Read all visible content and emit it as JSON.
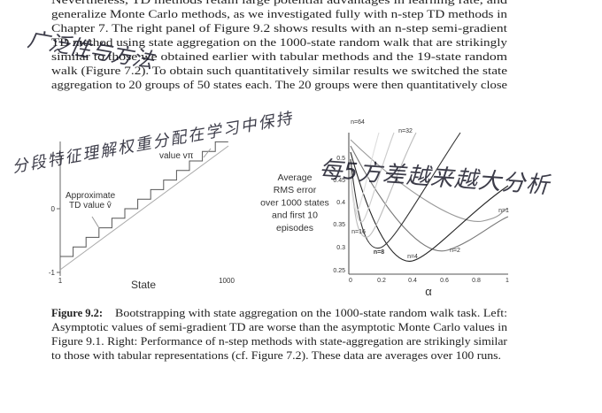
{
  "body": {
    "lines": [
      "Nevertheless, TD methods retain large potential advantages in learning rate, and",
      "generalize Monte Carlo methods, as we investigated fully with n-step TD methods in",
      "Chapter 7. The right panel of Figure 9.2 shows results with an n-step semi-gradient",
      "TD method using state aggregation on the 1000-state random walk that are strikingly",
      "similar to those we obtained earlier with tabular methods and the 19-state random",
      "walk (Figure 7.2). To obtain such quantitatively similar results we switched the state",
      "aggregation to 20 groups of 50 states each. The 20 groups were then quantitatively close"
    ]
  },
  "figure": {
    "left": {
      "true_value_label": "value vπ",
      "approx_label": [
        "Approximate",
        "TD value v̂"
      ],
      "yticks": [
        "0",
        "-1"
      ],
      "xticks": [
        "1",
        "1000"
      ],
      "xlabel": "State"
    },
    "middle_label": [
      "Average",
      "RMS error",
      "over 1000 states",
      "and first 10",
      "episodes"
    ],
    "right": {
      "yticks": [
        "0.5",
        "0.45",
        "0.4",
        "0.35",
        "0.3",
        "0.25"
      ],
      "xticks": [
        "0",
        "0.2",
        "0.4",
        "0.6",
        "0.8",
        "1"
      ],
      "xlabel": "α",
      "curve_labels": [
        "n=1",
        "n=2",
        "n=4",
        "n=8",
        "n=16",
        "n=32",
        "n=64"
      ]
    }
  },
  "caption": {
    "label": "Figure 9.2:",
    "lines": [
      "Bootstrapping with state aggregation on the 1000-state random walk task. Left:",
      "Asymptotic values of semi-gradient TD are worse than the asymptotic Monte Carlo values in",
      "Figure 9.1. Right: Performance of n-step methods with state-aggregation are strikingly similar",
      "to those with tabular representations (cf. Figure 7.2). These data are averages over 100 runs."
    ]
  },
  "handwriting": [
    "广泛性与方法",
    "分段特征理解权重分配在学习中保持",
    "每5方差越来越大分析"
  ]
}
